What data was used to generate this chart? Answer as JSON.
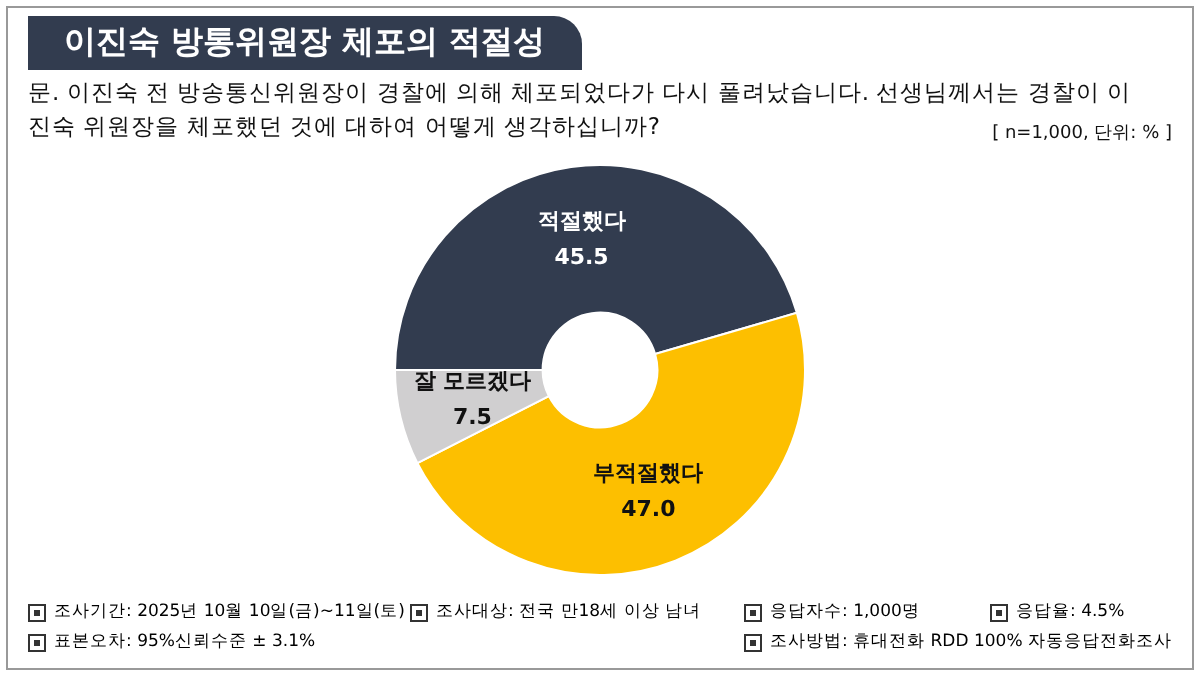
{
  "chart_data": {
    "type": "donut",
    "title": "이진숙 방통위원장 체포의 적절성",
    "subtitle": "문. 이진숙 전 방송통신위원장이 경찰에 의해 체포되었다가 다시 풀려났습니다. 선생님께서는 경찰이 이진숙 위원장을 체포했던 것에 대하여 어떻게 생각하십니까?",
    "categories": [
      "적절했다",
      "부적절했다",
      "잘 모르겠다"
    ],
    "values": [
      45.5,
      47.0,
      7.5
    ],
    "colors": [
      "#323c4f",
      "#fdbf00",
      "#d0cfd0"
    ],
    "value_labels": [
      "45.5",
      "47.0",
      "7.5"
    ],
    "annotations": [
      "[ n=1,000, 단위: % ]",
      "조사기간: 2025년 10월 10일(금)~11일(토)",
      "조사대상: 전국 만18세 이상 남녀",
      "응답자수: 1,000명",
      "응답율: 4.5%",
      "표본오차: 95%신뢰수준 ± 3.1%",
      "조사방법: 휴대전화 RDD 100% 자동응답전화조사"
    ]
  }
}
